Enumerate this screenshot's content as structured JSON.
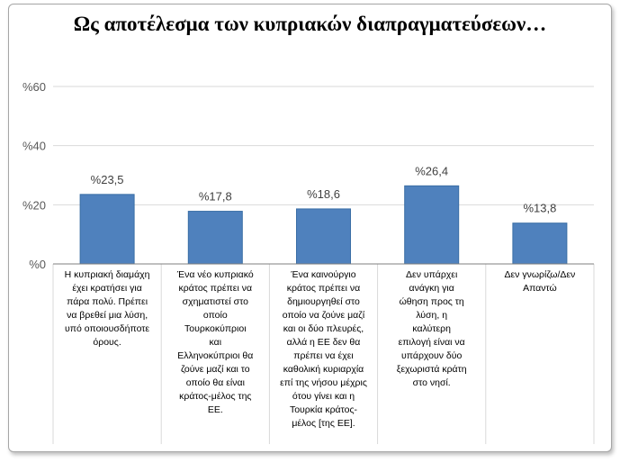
{
  "title": "Ως αποτέλεσμα των κυπριακών διαπραγματεύσεων…",
  "colors": {
    "bar": "#4f81bd",
    "bar_stroke": "#3a6ea5",
    "grid": "#d9d9d9",
    "axis": "#7f7f7f"
  },
  "chart_data": {
    "type": "bar",
    "title": "Ως αποτέλεσμα των κυπριακών διαπραγματεύσεων…",
    "xlabel": "",
    "ylabel": "",
    "ylim": [
      0,
      60
    ],
    "yticks": [
      0,
      20,
      40,
      60
    ],
    "ytick_labels": [
      "%0",
      "%20",
      "%40",
      "%60"
    ],
    "grid": true,
    "categories": [
      "Η κυπριακή διαμάχη έχει κρατήσει για πάρα πολύ. Πρέπει να βρεθεί μια λύση, υπό οποιουσδήποτε όρους.",
      "Ένα νέο κυπριακό κράτος πρέπει να σχηματιστεί στο οποίο Τουρκοκύπριοι και Ελληνοκύπριοι θα ζούνε μαζί και το οποίο θα είναι κράτος-μέλος της ΕΕ.",
      "Ένα καινούργιο κράτος πρέπει να δημιουργηθεί στο οποίο να ζούνε μαζί και οι δύο πλευρές, αλλά η ΕΕ δεν θα πρέπει να έχει καθολική κυριαρχία επί της νήσου μέχρις ότου γίνει και η Τουρκία κράτος-μέλος [της ΕΕ].",
      "Δεν υπάρχει ανάγκη για ώθηση προς τη λύση, η καλύτερη επιλογή είναι να υπάρχουν δύο ξεχωριστά κράτη στο νησί.",
      "Δεν γνωρίζω/Δεν Απαντώ"
    ],
    "category_lines": [
      [
        "Η κυπριακή διαμάχη",
        "έχει κρατήσει για",
        "πάρα πολύ. Πρέπει",
        "να βρεθεί μια λύση,",
        "υπό οποιουσδήποτε",
        "όρους."
      ],
      [
        "Ένα νέο κυπριακό",
        "κράτος πρέπει να",
        "σχηματιστεί στο",
        "οποίο",
        "Τουρκοκύπριοι",
        "και",
        "Ελληνοκύπριοι θα",
        "ζούνε μαζί και το",
        "οποίο θα είναι",
        "κράτος-μέλος της",
        "ΕΕ."
      ],
      [
        "Ένα καινούργιο",
        "κράτος πρέπει να",
        "δημιουργηθεί στο",
        "οποίο να ζούνε μαζί",
        "και οι δύο πλευρές,",
        "αλλά η ΕΕ δεν θα",
        "πρέπει να έχει",
        "καθολική κυριαρχία",
        "επί της νήσου μέχρις",
        "ότου γίνει και η",
        "Τουρκία κράτος-",
        "μέλος [της ΕΕ]."
      ],
      [
        "Δεν υπάρχει",
        "ανάγκη για",
        "ώθηση προς τη",
        "λύση, η",
        "καλύτερη",
        "επιλογή είναι να",
        "υπάρχουν δύο",
        "ξεχωριστά κράτη",
        "στο νησί."
      ],
      [
        "Δεν γνωρίζω/Δεν",
        "Απαντώ"
      ]
    ],
    "values": [
      23.5,
      17.8,
      18.6,
      26.4,
      13.8
    ],
    "data_labels": [
      "%23,5",
      "%17,8",
      "%18,6",
      "%26,4",
      "%13,8"
    ]
  }
}
